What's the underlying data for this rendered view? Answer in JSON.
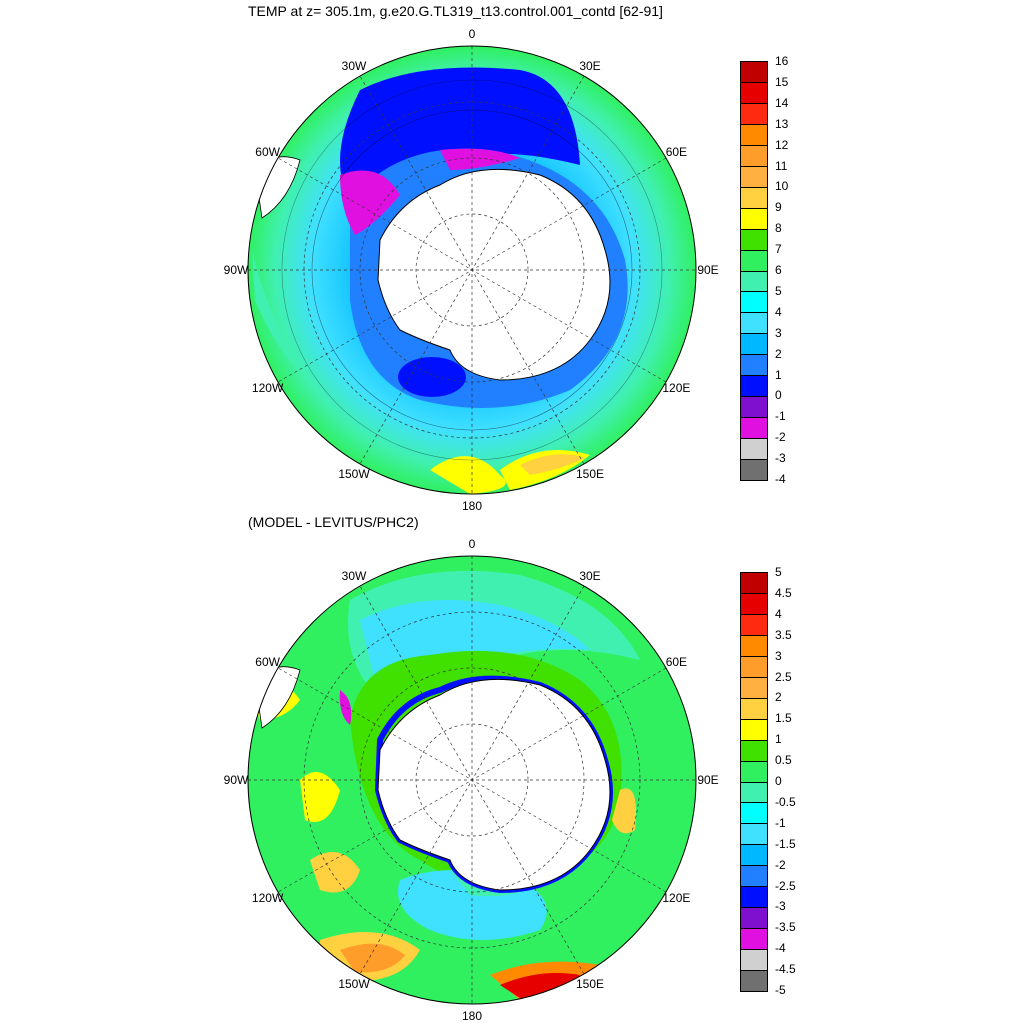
{
  "panels": [
    {
      "title": "TEMP at z= 305.1m, g.e20.G.TL319_t13.control.001_contd [62-91]",
      "map_labels": [
        "0",
        "30E",
        "60E",
        "90E",
        "120E",
        "150E",
        "180",
        "150W",
        "120W",
        "90W",
        "60W",
        "30W"
      ],
      "colorbar": {
        "labels": [
          "16",
          "15",
          "14",
          "13",
          "12",
          "11",
          "10",
          "9",
          "8",
          "7",
          "6",
          "5",
          "4",
          "3",
          "2",
          "1",
          "0",
          "-1",
          "-2",
          "-3",
          "-4"
        ],
        "colors": [
          "#c00000",
          "#e60000",
          "#ff2a10",
          "#ff8a00",
          "#ff9d2a",
          "#ffb040",
          "#ffd040",
          "#ffff00",
          "#40e000",
          "#30f060",
          "#40f0b0",
          "#00ffff",
          "#40e0ff",
          "#00b8ff",
          "#2080ff",
          "#0010ff",
          "#8010d0",
          "#e010e0",
          "#d0d0d0",
          "#707070"
        ]
      }
    },
    {
      "title": "(MODEL - LEVITUS/PHC2)",
      "map_labels": [
        "0",
        "30E",
        "60E",
        "90E",
        "120E",
        "150E",
        "180",
        "150W",
        "120W",
        "90W",
        "60W",
        "30W"
      ],
      "colorbar": {
        "labels": [
          "5",
          "4.5",
          "4",
          "3.5",
          "3",
          "2.5",
          "2",
          "1.5",
          "1",
          "0.5",
          "0",
          "-0.5",
          "-1",
          "-1.5",
          "-2",
          "-2.5",
          "-3",
          "-3.5",
          "-4",
          "-4.5",
          "-5"
        ],
        "colors": [
          "#c00000",
          "#e60000",
          "#ff2a10",
          "#ff8a00",
          "#ff9d2a",
          "#ffb040",
          "#ffd040",
          "#ffff00",
          "#40e000",
          "#30f060",
          "#40f0b0",
          "#00ffff",
          "#40e0ff",
          "#00b8ff",
          "#2080ff",
          "#0010ff",
          "#8010d0",
          "#e010e0",
          "#d0d0d0",
          "#707070"
        ]
      }
    }
  ]
}
